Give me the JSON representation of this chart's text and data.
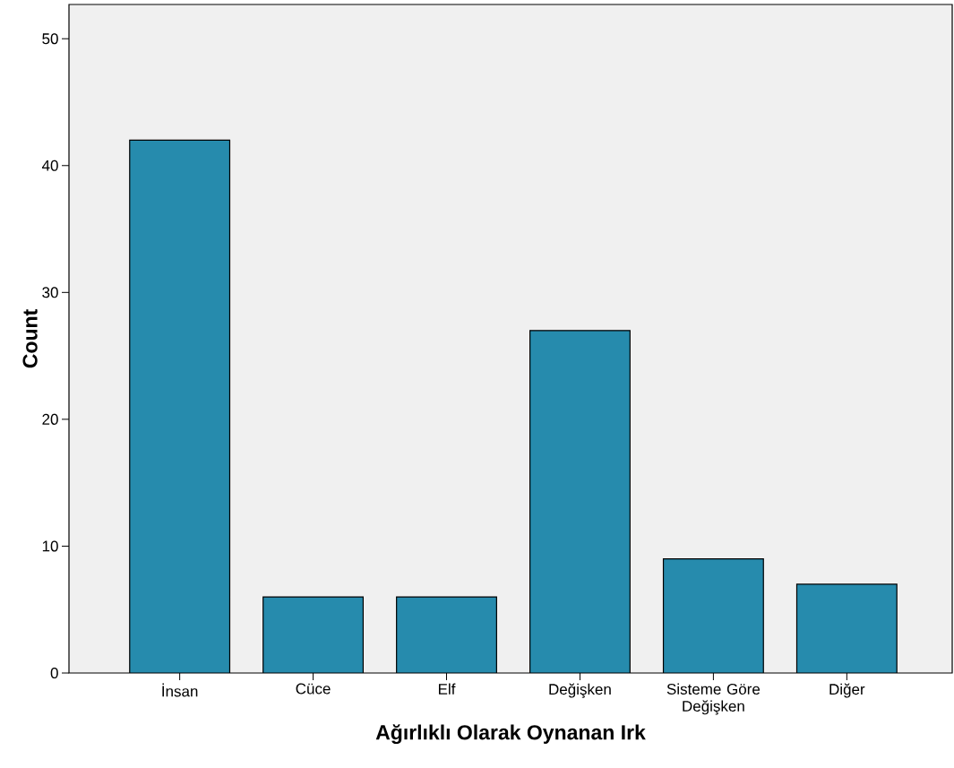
{
  "chart_data": {
    "type": "bar",
    "xlabel": "Ağırlıklı Olarak Oynanan Irk",
    "ylabel": "Count",
    "categories": [
      "İnsan",
      "Cüce",
      "Elf",
      "Değişken",
      "Sisteme Göre Değişken",
      "Diğer"
    ],
    "values": [
      42,
      6,
      6,
      27,
      9,
      7
    ],
    "color": "#268bad",
    "ylim": [
      0,
      52.7
    ],
    "yticks": [
      0,
      10,
      20,
      30,
      40,
      50
    ]
  }
}
